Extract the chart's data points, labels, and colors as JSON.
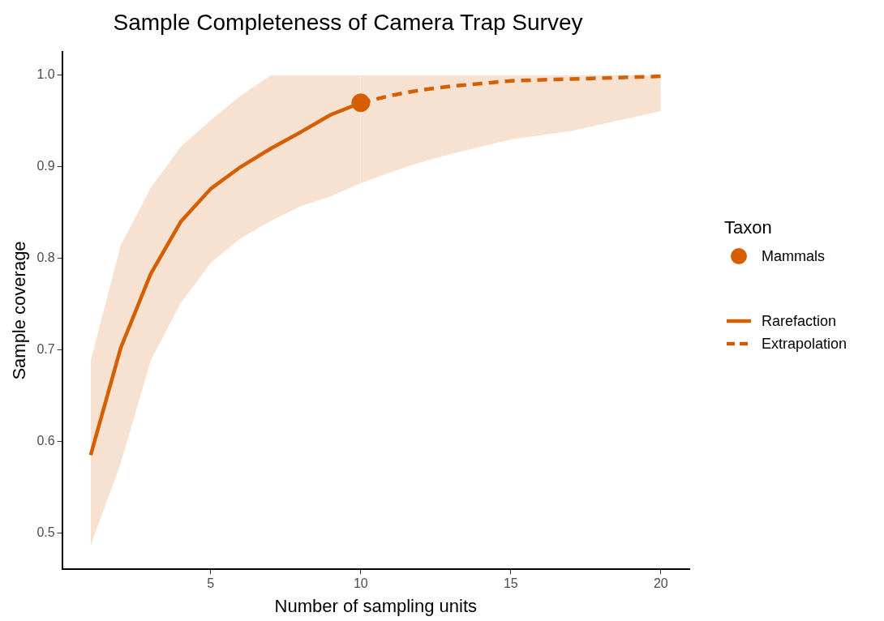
{
  "chart_data": {
    "type": "line",
    "title": "Sample Completeness of Camera Trap Survey",
    "xlabel": "Number of sampling units",
    "ylabel": "Sample coverage",
    "legend_title": "Taxon",
    "legend": "right",
    "grid": false,
    "xlim": [
      0.05,
      20.95
    ],
    "ylim": [
      0.46,
      1.026
    ],
    "xticks": [
      5,
      10,
      15,
      20
    ],
    "yticks": [
      0.5,
      0.6,
      0.7,
      0.8,
      0.9,
      {
        "value": 1,
        "label": "1.0"
      }
    ],
    "series": [
      {
        "name": "Rarefaction",
        "line_style": "solid",
        "color": "#d55e00",
        "x": [
          1,
          2,
          3,
          4,
          5,
          6,
          7,
          8,
          9,
          10
        ],
        "values": [
          0.585,
          0.702,
          0.783,
          0.84,
          0.876,
          0.9,
          0.92,
          0.938,
          0.957,
          0.97
        ],
        "lower": [
          0.486,
          0.576,
          0.688,
          0.751,
          0.795,
          0.822,
          0.841,
          0.857,
          0.868,
          0.882
        ],
        "upper": [
          0.688,
          0.814,
          0.877,
          0.922,
          0.951,
          0.978,
          1.0,
          1.0,
          1.0,
          1.0
        ]
      },
      {
        "name": "Extrapolation",
        "line_style": "dashed",
        "color": "#d55e00",
        "x": [
          10,
          11,
          12,
          13,
          15,
          17,
          20
        ],
        "values": [
          0.97,
          0.978,
          0.984,
          0.988,
          0.994,
          0.996,
          0.999
        ],
        "lower": [
          0.882,
          0.894,
          0.905,
          0.914,
          0.93,
          0.939,
          0.961
        ],
        "upper": [
          1.0,
          1.0,
          1.0,
          1.0,
          1.0,
          1.0,
          1.0
        ]
      },
      {
        "name": "Mammals",
        "type": "scatter",
        "marker": "circle",
        "color": "#d55e00",
        "x": [
          10
        ],
        "values": [
          0.97
        ]
      }
    ]
  }
}
